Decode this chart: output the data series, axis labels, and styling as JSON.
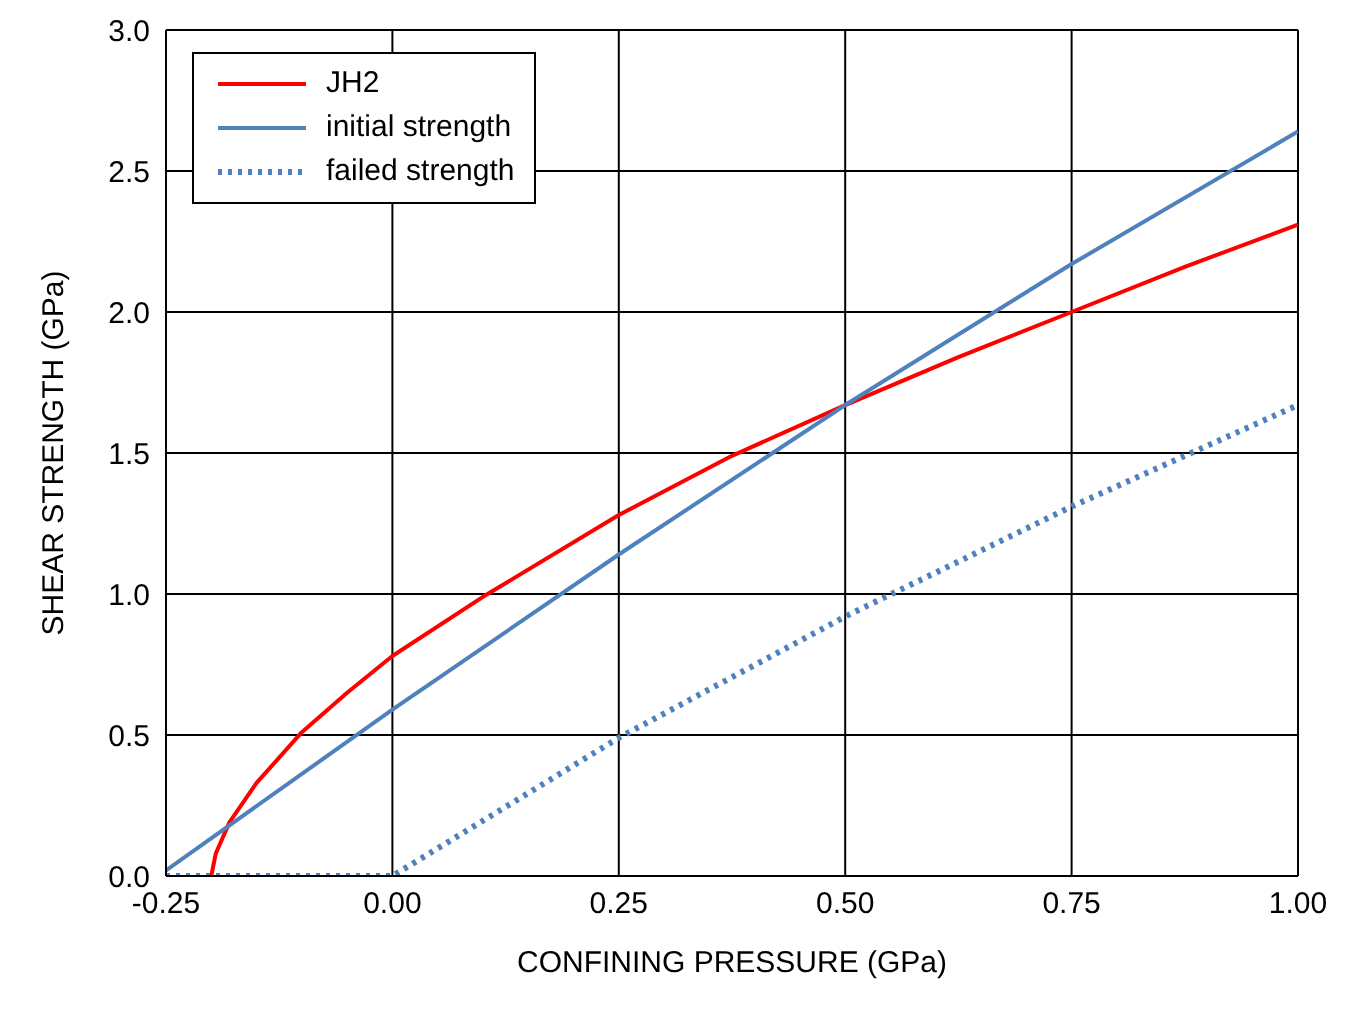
{
  "chart_data": {
    "type": "line",
    "xlabel": "CONFINING PRESSURE (GPa)",
    "ylabel": "SHEAR STRENGTH (GPa)",
    "xlim": [
      -0.25,
      1.0
    ],
    "ylim": [
      0,
      3.0
    ],
    "xticks": [
      {
        "value": -0.25,
        "label": "-0.25"
      },
      {
        "value": 0,
        "label": "0.00"
      },
      {
        "value": 0.25,
        "label": "0.25"
      },
      {
        "value": 0.5,
        "label": "0.50"
      },
      {
        "value": 0.75,
        "label": "0.75"
      },
      {
        "value": 1.0,
        "label": "1.00"
      }
    ],
    "yticks": [
      {
        "value": 0,
        "label": "0.0"
      },
      {
        "value": 0.5,
        "label": "0.5"
      },
      {
        "value": 1.0,
        "label": "1.0"
      },
      {
        "value": 1.5,
        "label": "1.5"
      },
      {
        "value": 2.0,
        "label": "2.0"
      },
      {
        "value": 2.5,
        "label": "2.5"
      },
      {
        "value": 3.0,
        "label": "3.0"
      }
    ],
    "grid": true,
    "legend": "top left",
    "marker": "none",
    "series": [
      {
        "name": "JH2",
        "color": "#ff0000",
        "line_style": "solid",
        "x": [
          -0.2,
          -0.195,
          -0.18,
          -0.15,
          -0.1,
          -0.05,
          0,
          0.1,
          0.25,
          0.375,
          0.5,
          0.625,
          0.75,
          0.875,
          1.0
        ],
        "values": [
          0,
          0.08,
          0.19,
          0.33,
          0.51,
          0.65,
          0.78,
          0.99,
          1.28,
          1.49,
          1.67,
          1.84,
          2.0,
          2.16,
          2.31
        ]
      },
      {
        "name": "initial strength",
        "color": "#4f81bd",
        "line_style": "solid",
        "x": [
          -0.25,
          0,
          0.25,
          0.5,
          0.75,
          1.0
        ],
        "values": [
          0.02,
          0.59,
          1.14,
          1.67,
          2.17,
          2.64
        ]
      },
      {
        "name": "failed strength",
        "color": "#4f81bd",
        "line_style": "dotted",
        "x": [
          -0.25,
          0,
          0.25,
          0.5,
          0.75,
          1.0
        ],
        "values": [
          0,
          0,
          0.49,
          0.92,
          1.31,
          1.67
        ]
      }
    ]
  }
}
